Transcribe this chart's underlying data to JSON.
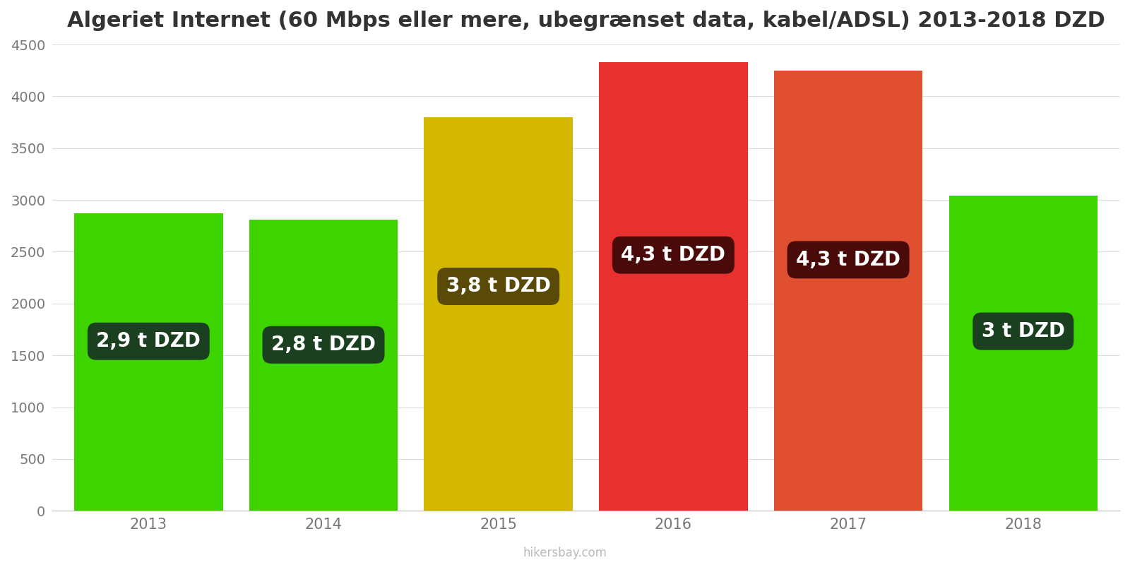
{
  "title": "Algeriet Internet (60 Mbps eller mere, ubegrænset data, kabel/ADSL) 2013-2018 DZD",
  "years": [
    2013,
    2014,
    2015,
    2016,
    2017,
    2018
  ],
  "values": [
    2870,
    2810,
    3800,
    4330,
    4250,
    3040
  ],
  "bar_colors": [
    "#3dd400",
    "#3dd400",
    "#d4b800",
    "#e83030",
    "#e05030",
    "#3dd400"
  ],
  "label_texts": [
    "2,9 t DZD",
    "2,8 t DZD",
    "3,8 t DZD",
    "4,3 t DZD",
    "4,3 t DZD",
    "3 t DZD"
  ],
  "label_bg_colors": [
    "#1a4020",
    "#1a4020",
    "#5a4a08",
    "#4a0a0a",
    "#4a0a0a",
    "#1a4020"
  ],
  "ylim": [
    0,
    4500
  ],
  "yticks": [
    0,
    500,
    1000,
    1500,
    2000,
    2500,
    3000,
    3500,
    4000,
    4500
  ],
  "watermark": "hikersbay.com",
  "background_color": "#ffffff",
  "title_fontsize": 22,
  "label_fontsize": 20,
  "bar_width": 0.85
}
